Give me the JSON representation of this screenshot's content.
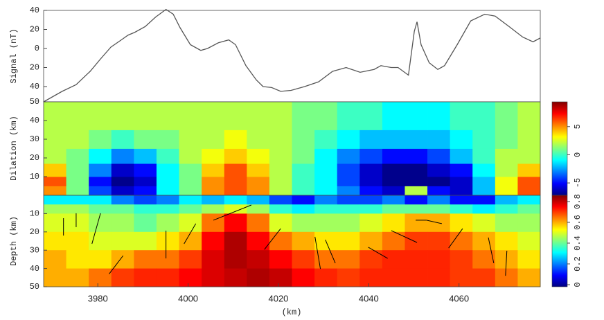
{
  "chart_data": [
    {
      "type": "line",
      "ylabel": "Signal (nT)",
      "color": "#555555",
      "xlim": [
        3968,
        4078
      ],
      "ylim": [
        -56,
        40
      ],
      "yticks": [
        40,
        20,
        0,
        {
          "value": -20,
          "label": "20"
        },
        {
          "value": -40,
          "label": "40"
        }
      ],
      "x": [
        3968,
        3972.1,
        3975.2,
        3978.3,
        3980.6,
        3982.9,
        3985.2,
        3986.7,
        3988.2,
        3990.5,
        3992.8,
        3995.1,
        3996.7,
        3998.2,
        4000.5,
        4002.8,
        4004.3,
        4006.7,
        4009,
        4010.5,
        4012.8,
        4015.1,
        4016.6,
        4018.5,
        4020.5,
        4022.8,
        4025.8,
        4028.9,
        4032,
        4035,
        4038.1,
        4041.2,
        4042.7,
        4045,
        4046.5,
        4048.8,
        4050.1,
        4050.7,
        4051.6,
        4053.4,
        4055.3,
        4056.8,
        4059.6,
        4062.6,
        4065.7,
        4068,
        4071.1,
        4074.1,
        4076.4,
        4078
      ],
      "values": [
        -56,
        -45,
        -38,
        -24,
        -11,
        1.5,
        9,
        14,
        17,
        23,
        33,
        41,
        36,
        22,
        4,
        -2,
        0,
        6,
        9,
        4,
        -18,
        -33,
        -40,
        -41,
        -45,
        -44,
        -40,
        -35,
        -24,
        -20,
        -25,
        -22,
        -18,
        -20,
        -20,
        -28,
        18,
        28,
        4,
        -15,
        -22,
        -18,
        4,
        29,
        36,
        34,
        23,
        12,
        7,
        11
      ]
    },
    {
      "type": "heatmap",
      "ylabel": "Dilation (km)",
      "colormap": "jet",
      "y_inverted": false,
      "xlim": [
        3968,
        4078
      ],
      "ylim": [
        0,
        50
      ],
      "yticks": [
        10,
        20,
        30,
        40,
        50
      ],
      "clim": [
        -7.2,
        9.4
      ],
      "cticks": [
        5,
        0,
        -5
      ],
      "x_edges": [
        3968,
        3973,
        3978,
        3983,
        3988,
        3993,
        3998,
        4003,
        4008,
        4013,
        4018,
        4023,
        4028,
        4033,
        4038,
        4043,
        4048,
        4053,
        4058,
        4063,
        4068,
        4073,
        4078
      ],
      "y_edges": [
        0,
        5,
        10,
        17,
        25,
        35,
        50
      ],
      "z": [
        [
          5,
          1,
          -4,
          -6,
          -5,
          -1,
          1,
          5,
          6,
          5,
          2,
          0,
          -1,
          -3,
          -5,
          -6,
          2,
          -5,
          -6,
          -2,
          3,
          6
        ],
        [
          6,
          1,
          -5,
          -7,
          -6,
          -1,
          1,
          5,
          6,
          5,
          2,
          0,
          -1,
          -4,
          -6,
          -7,
          -7,
          -7,
          -6,
          -2,
          3,
          6
        ],
        [
          4,
          1,
          -3,
          -6,
          -5,
          -1,
          1,
          4,
          6,
          4,
          2,
          0,
          -1,
          -4,
          -6,
          -7,
          -7,
          -6,
          -5,
          -1,
          2,
          4
        ],
        [
          2,
          1,
          -1,
          -3,
          -2,
          0,
          2,
          3,
          4,
          3,
          2,
          1,
          -1,
          -3,
          -4,
          -5,
          -5,
          -4,
          -2,
          0,
          2,
          2
        ],
        [
          2,
          2,
          1,
          0,
          1,
          1,
          2,
          2,
          3,
          2,
          2,
          1,
          0,
          -1,
          -2,
          -2,
          -2,
          -2,
          -1,
          0,
          1,
          2
        ],
        [
          2,
          2,
          2,
          2,
          2,
          2,
          2,
          2,
          2,
          2,
          2,
          1,
          1,
          0,
          0,
          -1,
          -1,
          -1,
          0,
          0,
          1,
          2
        ]
      ]
    },
    {
      "type": "heatmap",
      "ylabel": "Depth (km)",
      "xlabel": "(km)",
      "colormap": "jet",
      "y_inverted": true,
      "xlim": [
        3968,
        4078
      ],
      "ylim": [
        0,
        50
      ],
      "yticks": [
        10,
        20,
        30,
        40,
        50
      ],
      "xticks": [
        3980,
        4000,
        4020,
        4040,
        4060
      ],
      "clim": [
        -0.02,
        0.86
      ],
      "cticks": [
        0.8,
        0.6,
        0.4,
        0.2,
        0
      ],
      "x_edges": [
        3968,
        3973,
        3978,
        3983,
        3988,
        3993,
        3998,
        4003,
        4008,
        4013,
        4018,
        4023,
        4028,
        4033,
        4038,
        4043,
        4048,
        4053,
        4058,
        4063,
        4068,
        4073,
        4078
      ],
      "y_edges": [
        0,
        5,
        10,
        20,
        30,
        40,
        50
      ],
      "z": [
        [
          0.3,
          0.3,
          0.3,
          0.2,
          0.15,
          0.2,
          0.3,
          0.25,
          0.3,
          0.25,
          0.15,
          0.1,
          0.2,
          0.15,
          0.15,
          0.2,
          0.1,
          0.2,
          0.1,
          0.1,
          0.25,
          0.3
        ],
        [
          0.45,
          0.45,
          0.4,
          0.4,
          0.35,
          0.35,
          0.4,
          0.45,
          0.5,
          0.45,
          0.35,
          0.3,
          0.35,
          0.35,
          0.35,
          0.4,
          0.4,
          0.4,
          0.35,
          0.3,
          0.35,
          0.4
        ],
        [
          0.5,
          0.5,
          0.45,
          0.45,
          0.4,
          0.45,
          0.5,
          0.65,
          0.75,
          0.65,
          0.5,
          0.45,
          0.45,
          0.45,
          0.5,
          0.55,
          0.6,
          0.6,
          0.55,
          0.5,
          0.45,
          0.45
        ],
        [
          0.55,
          0.55,
          0.5,
          0.5,
          0.5,
          0.55,
          0.6,
          0.75,
          0.82,
          0.75,
          0.65,
          0.6,
          0.55,
          0.55,
          0.6,
          0.65,
          0.7,
          0.7,
          0.65,
          0.6,
          0.55,
          0.5
        ],
        [
          0.6,
          0.55,
          0.55,
          0.6,
          0.65,
          0.65,
          0.7,
          0.78,
          0.82,
          0.8,
          0.75,
          0.7,
          0.65,
          0.65,
          0.7,
          0.72,
          0.72,
          0.72,
          0.7,
          0.65,
          0.6,
          0.55
        ],
        [
          0.6,
          0.6,
          0.65,
          0.7,
          0.72,
          0.72,
          0.75,
          0.78,
          0.8,
          0.82,
          0.8,
          0.75,
          0.72,
          0.7,
          0.72,
          0.72,
          0.72,
          0.72,
          0.7,
          0.7,
          0.65,
          0.6
        ]
      ],
      "segments": [
        [
          3972.4,
          12.5,
          3972.4,
          22
        ],
        [
          3975.2,
          9.8,
          3975.2,
          17.4
        ],
        [
          3980.6,
          9.8,
          3978.7,
          26.5
        ],
        [
          3985.6,
          33,
          3982.5,
          43
        ],
        [
          3995.1,
          19.3,
          3995.1,
          34.5
        ],
        [
          4001.7,
          15.5,
          3999.1,
          26.5
        ],
        [
          4014,
          5.3,
          4005.6,
          13.6
        ],
        [
          4020.5,
          18.2,
          4016.9,
          29.6
        ],
        [
          4028.1,
          22.7,
          4029.3,
          40.2
        ],
        [
          4030.4,
          24.3,
          4032.6,
          37.1
        ],
        [
          4039.9,
          28.4,
          4044.2,
          34.5
        ],
        [
          4045,
          19.3,
          4050.7,
          25.8
        ],
        [
          4050.4,
          13.6,
          4052.8,
          13.6
        ],
        [
          4052.8,
          13.6,
          4056.2,
          15.5
        ],
        [
          4060.8,
          18.2,
          4057.7,
          28.8
        ],
        [
          4066.5,
          23.1,
          4067.7,
          37.1
        ],
        [
          4070.6,
          30.3,
          4070.3,
          44
        ]
      ]
    }
  ]
}
